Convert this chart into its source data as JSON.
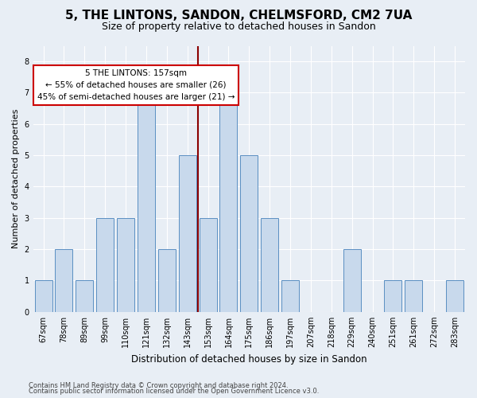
{
  "title": "5, THE LINTONS, SANDON, CHELMSFORD, CM2 7UA",
  "subtitle": "Size of property relative to detached houses in Sandon",
  "xlabel": "Distribution of detached houses by size in Sandon",
  "ylabel": "Number of detached properties",
  "categories": [
    "67sqm",
    "78sqm",
    "89sqm",
    "99sqm",
    "110sqm",
    "121sqm",
    "132sqm",
    "143sqm",
    "153sqm",
    "164sqm",
    "175sqm",
    "186sqm",
    "197sqm",
    "207sqm",
    "218sqm",
    "229sqm",
    "240sqm",
    "251sqm",
    "261sqm",
    "272sqm",
    "283sqm"
  ],
  "values": [
    1,
    2,
    1,
    3,
    3,
    7,
    2,
    5,
    3,
    7,
    5,
    3,
    1,
    0,
    0,
    2,
    0,
    1,
    1,
    0,
    1
  ],
  "bar_color": "#c8d9ec",
  "bar_edge_color": "#5a8fc2",
  "vline_color": "#8b0000",
  "annotation_text": "5 THE LINTONS: 157sqm\n← 55% of detached houses are smaller (26)\n45% of semi-detached houses are larger (21) →",
  "annotation_box_color": "#ffffff",
  "annotation_box_edge": "#cc0000",
  "ylim": [
    0,
    8.5
  ],
  "yticks": [
    0,
    1,
    2,
    3,
    4,
    5,
    6,
    7,
    8
  ],
  "background_color": "#e8eef5",
  "plot_bg_color": "#e8eef5",
  "footer1": "Contains HM Land Registry data © Crown copyright and database right 2024.",
  "footer2": "Contains public sector information licensed under the Open Government Licence v3.0.",
  "title_fontsize": 11,
  "subtitle_fontsize": 9,
  "tick_fontsize": 7,
  "ylabel_fontsize": 8,
  "xlabel_fontsize": 8.5,
  "annotation_fontsize": 7.5,
  "footer_fontsize": 6
}
